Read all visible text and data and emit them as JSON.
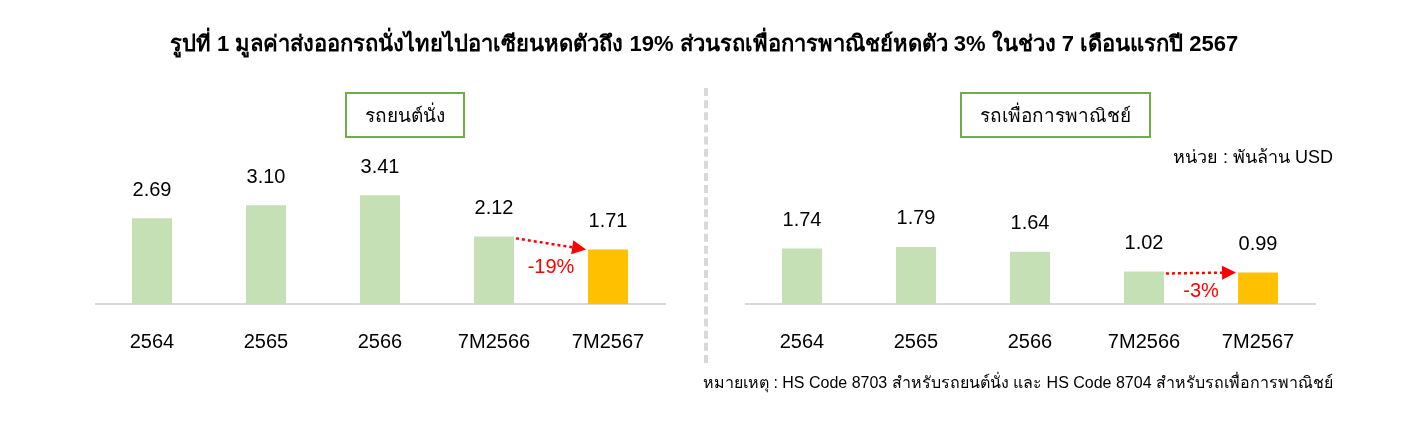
{
  "chart_data": [
    {
      "type": "bar",
      "title": "รูปที่ 1 มูลค่าส่งออกรถนั่งไทยไปอาเซียนหดตัวถึง 19% ส่วนรถเพื่อการพาณิชย์หดตัว 3% ในช่วง 7 เดือนแรกปี 2567",
      "subtitle": "รถยนต์นั่ง",
      "categories": [
        "2564",
        "2565",
        "2566",
        "7M2566",
        "7M2567"
      ],
      "values": [
        2.69,
        3.1,
        3.41,
        2.12,
        1.71
      ],
      "value_labels": [
        "2.69",
        "3.10",
        "3.41",
        "2.12",
        "1.71"
      ],
      "colors": [
        "#c5e0b4",
        "#c5e0b4",
        "#c5e0b4",
        "#c5e0b4",
        "#ffc000"
      ],
      "grid": false,
      "legend": false,
      "annotations": [
        {
          "text": "-19%",
          "x": "7M2567",
          "y": 1.71
        }
      ]
    },
    {
      "type": "bar",
      "subtitle": "รถเพื่อการพาณิชย์",
      "categories": [
        "2564",
        "2565",
        "2566",
        "7M2566",
        "7M2567"
      ],
      "values": [
        1.74,
        1.79,
        1.64,
        1.02,
        0.99
      ],
      "value_labels": [
        "1.74",
        "1.79",
        "1.64",
        "1.02",
        "0.99"
      ],
      "colors": [
        "#c5e0b4",
        "#c5e0b4",
        "#c5e0b4",
        "#c5e0b4",
        "#ffc000"
      ],
      "grid": false,
      "legend": false,
      "annotations": [
        "หน่วย : พันล้าน USD",
        "หมายเหตุ : HS Code 8703 สำหรับรถยนต์นั่ง และ HS Code 8704 สำหรับรถเพื่อการพาณิชย์",
        {
          "text": "-3%",
          "x": "7M2567",
          "y": 0.99
        }
      ]
    }
  ]
}
